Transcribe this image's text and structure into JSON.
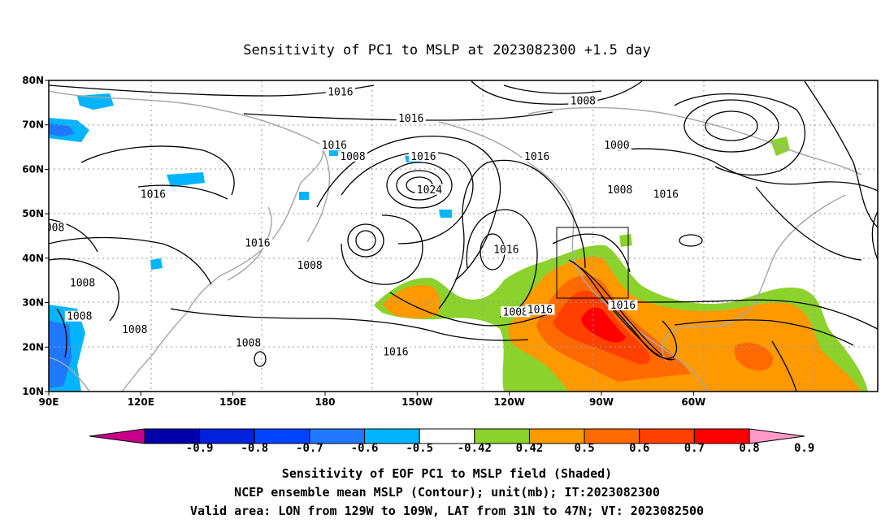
{
  "title": "Sensitivity of PC1 to MSLP at 2023082300 +1.5 day",
  "map": {
    "lat_ticks": [
      "80N",
      "70N",
      "60N",
      "50N",
      "40N",
      "30N",
      "20N",
      "10N"
    ],
    "lon_ticks": [
      "90E",
      "120E",
      "150E",
      "180",
      "150W",
      "120W",
      "90W",
      "60W"
    ],
    "contour_labels": [
      {
        "text": "1016",
        "lon": -175,
        "lat": 77
      },
      {
        "text": "1016",
        "lon": -152,
        "lat": 71
      },
      {
        "text": "1008",
        "lon": -96,
        "lat": 75
      },
      {
        "text": "1016",
        "lon": -177,
        "lat": 65
      },
      {
        "text": "1008",
        "lon": -171,
        "lat": 62.5
      },
      {
        "text": "1016",
        "lon": -148,
        "lat": 62.5
      },
      {
        "text": "1016",
        "lon": -111,
        "lat": 62.5
      },
      {
        "text": "1000",
        "lon": -85,
        "lat": 65
      },
      {
        "text": "1024",
        "lon": -146,
        "lat": 55
      },
      {
        "text": "1016",
        "lon": 124,
        "lat": 54
      },
      {
        "text": "1008",
        "lon": -84,
        "lat": 55
      },
      {
        "text": "1016",
        "lon": -69,
        "lat": 54
      },
      {
        "text": "008",
        "lon": 92,
        "lat": 46.5
      },
      {
        "text": "1016",
        "lon": 158,
        "lat": 43
      },
      {
        "text": "1016",
        "lon": -121,
        "lat": 41.5
      },
      {
        "text": "1008",
        "lon": 175,
        "lat": 38
      },
      {
        "text": "1008",
        "lon": 101,
        "lat": 34
      },
      {
        "text": "1008",
        "lon": 100,
        "lat": 26.5
      },
      {
        "text": "1008",
        "lon": -118,
        "lat": 27.5
      },
      {
        "text": "1016",
        "lon": -110,
        "lat": 28
      },
      {
        "text": "1016",
        "lon": -83,
        "lat": 29
      },
      {
        "text": "1008",
        "lon": 118,
        "lat": 23.5
      },
      {
        "text": "1008",
        "lon": 155,
        "lat": 20.5
      },
      {
        "text": "1016",
        "lon": -157,
        "lat": 18.5
      }
    ]
  },
  "colorbar": {
    "labels": [
      "-0.9",
      "-0.8",
      "-0.7",
      "-0.6",
      "-0.5",
      "-0.42",
      "0.42",
      "0.5",
      "0.6",
      "0.7",
      "0.8",
      "0.9"
    ],
    "colors": [
      "#0000aa",
      "#0022dd",
      "#0044ff",
      "#1f78ff",
      "#00b4ff",
      "#ffffff",
      "#8cd22d",
      "#ff9900",
      "#ff6a00",
      "#ff4000",
      "#ff0000"
    ],
    "low_tip": "#c8008c",
    "high_tip": "#ff9ac8"
  },
  "caption": {
    "line1": "Sensitivity of EOF PC1 to MSLP field (Shaded)",
    "line2": "NCEP ensemble mean MSLP (Contour); unit(mb); IT:2023082300",
    "line3": "Valid area: LON from 129W to 109W, LAT from 31N to 47N; VT: 2023082500"
  }
}
